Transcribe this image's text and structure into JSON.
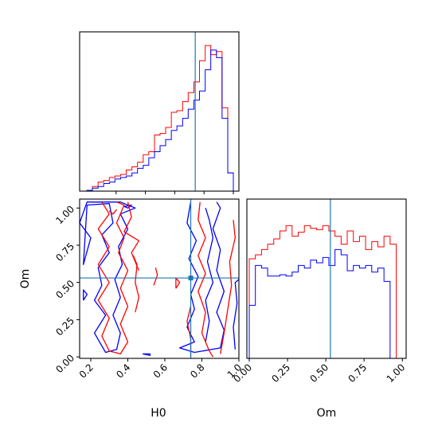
{
  "chart_data": [
    {
      "panel": "H0 marginal",
      "type": "histogram",
      "x_edges": [
        0.0,
        0.038,
        0.077,
        0.115,
        0.154,
        0.192,
        0.231,
        0.269,
        0.308,
        0.346,
        0.385,
        0.423,
        0.462,
        0.5,
        0.538,
        0.577,
        0.615,
        0.654,
        0.692,
        0.731,
        0.769,
        0.808,
        0.846,
        0.885,
        0.923,
        0.962,
        1.0
      ],
      "series": [
        {
          "color": "#ff0000",
          "values": [
            0.005,
            0.03,
            0.06,
            0.07,
            0.09,
            0.1,
            0.11,
            0.14,
            0.16,
            0.19,
            0.24,
            0.26,
            0.37,
            0.38,
            0.42,
            0.52,
            0.53,
            0.59,
            0.65,
            0.72,
            0.86,
            0.96,
            0.9,
            0.92,
            0.55,
            0.12
          ]
        },
        {
          "color": "#0000ff",
          "values": [
            0.005,
            0.02,
            0.03,
            0.05,
            0.06,
            0.08,
            0.09,
            0.1,
            0.12,
            0.15,
            0.17,
            0.22,
            0.26,
            0.3,
            0.34,
            0.4,
            0.43,
            0.48,
            0.54,
            0.6,
            0.66,
            0.8,
            0.93,
            0.88,
            0.48,
            0.12
          ]
        }
      ],
      "truth_line": 0.74,
      "ylim": [
        0,
        1.05
      ],
      "xlim": [
        0.0,
        1.0
      ]
    },
    {
      "panel": "Om marginal",
      "type": "histogram",
      "x_edges": [
        0.0,
        0.04,
        0.08,
        0.12,
        0.16,
        0.2,
        0.24,
        0.28,
        0.32,
        0.36,
        0.4,
        0.44,
        0.48,
        0.52,
        0.56,
        0.6,
        0.64,
        0.68,
        0.72,
        0.76,
        0.8,
        0.84,
        0.88,
        0.92,
        0.96,
        1.0
      ],
      "series": [
        {
          "color": "#ff0000",
          "values": [
            0.75,
            0.78,
            0.82,
            0.86,
            0.9,
            0.96,
            1.0,
            0.92,
            0.95,
            1.0,
            0.98,
            0.97,
            1.0,
            0.96,
            0.92,
            0.86,
            0.96,
            0.88,
            0.92,
            0.82,
            0.88,
            0.84,
            0.92,
            0.86,
            0.0
          ]
        },
        {
          "color": "#0000ff",
          "values": [
            0.4,
            0.7,
            0.68,
            0.62,
            0.62,
            0.63,
            0.62,
            0.65,
            0.7,
            0.68,
            0.74,
            0.72,
            0.76,
            0.7,
            0.82,
            0.78,
            0.66,
            0.7,
            0.68,
            0.7,
            0.65,
            0.68,
            0.58,
            0.0,
            0.0
          ]
        }
      ],
      "truth_line": 0.53,
      "ylim": [
        0,
        1.2
      ],
      "xlim": [
        0.0,
        1.03
      ],
      "xlabel": "Om",
      "xticks": [
        "0.00",
        "0.25",
        "0.50",
        "0.75",
        "1.00"
      ]
    },
    {
      "panel": "H0 vs Om 2D",
      "type": "contour",
      "xlabel": "H0",
      "ylabel": "Om",
      "xlim": [
        0.14,
        1.0
      ],
      "ylim": [
        -0.01,
        1.06
      ],
      "xticks": [
        "0.2",
        "0.4",
        "0.6",
        "0.8",
        "1.0"
      ],
      "yticks": [
        "0.00",
        "0.25",
        "0.50",
        "0.75",
        "1.00"
      ],
      "truth": {
        "H0": 0.74,
        "Om": 0.53
      },
      "series": [
        {
          "color": "#0000ff",
          "contours": [
            [
              [
                0.18,
                1.02
              ],
              [
                0.3,
                1.03
              ],
              [
                0.32,
                0.9
              ],
              [
                0.26,
                0.82
              ],
              [
                0.3,
                0.7
              ],
              [
                0.24,
                0.6
              ],
              [
                0.26,
                0.48
              ],
              [
                0.22,
                0.38
              ],
              [
                0.28,
                0.28
              ],
              [
                0.22,
                0.16
              ],
              [
                0.28,
                0.03
              ],
              [
                0.34,
                0.05
              ],
              [
                0.36,
                0.16
              ],
              [
                0.32,
                0.28
              ],
              [
                0.36,
                0.4
              ],
              [
                0.33,
                0.52
              ],
              [
                0.37,
                0.62
              ],
              [
                0.35,
                0.74
              ],
              [
                0.4,
                0.86
              ],
              [
                0.36,
                0.96
              ],
              [
                0.44,
                1.0
              ],
              [
                0.36,
                1.04
              ],
              [
                0.18,
                1.04
              ],
              [
                0.14,
                0.9
              ],
              [
                0.2,
                0.8
              ],
              [
                0.16,
                0.62
              ],
              [
                0.18,
                1.02
              ]
            ],
            [
              [
                0.74,
                1.04
              ],
              [
                0.72,
                0.9
              ],
              [
                0.77,
                0.78
              ],
              [
                0.73,
                0.66
              ],
              [
                0.78,
                0.54
              ],
              [
                0.74,
                0.42
              ],
              [
                0.76,
                0.32
              ],
              [
                0.72,
                0.2
              ],
              [
                0.76,
                0.1
              ],
              [
                0.68,
                0.06
              ],
              [
                0.76,
                0.03
              ],
              [
                0.9,
                0.06
              ],
              [
                0.92,
                0.18
              ],
              [
                0.88,
                0.3
              ],
              [
                0.92,
                0.44
              ],
              [
                0.88,
                0.58
              ],
              [
                0.9,
                0.72
              ],
              [
                0.86,
                0.86
              ],
              [
                0.9,
                1.0
              ],
              [
                0.88,
                1.04
              ]
            ],
            [
              [
                0.82,
                0.1
              ],
              [
                0.84,
                0.24
              ],
              [
                0.82,
                0.38
              ],
              [
                0.86,
                0.5
              ],
              [
                0.83,
                0.64
              ],
              [
                0.86,
                0.8
              ],
              [
                0.84,
                0.92
              ],
              [
                0.82,
                1.0
              ]
            ],
            [
              [
                0.98,
                0.05
              ],
              [
                0.97,
                0.2
              ],
              [
                0.99,
                0.36
              ],
              [
                0.98,
                0.5
              ],
              [
                1.0,
                0.52
              ]
            ],
            [
              [
                0.16,
                0.38
              ],
              [
                0.18,
                0.42
              ],
              [
                0.16,
                0.45
              ],
              [
                0.16,
                0.38
              ]
            ],
            [
              [
                0.48,
                0.02
              ],
              [
                0.52,
                0.02
              ],
              [
                0.52,
                0.01
              ],
              [
                0.48,
                0.02
              ]
            ],
            [
              [
                0.38,
                1.01
              ],
              [
                0.42,
                1.02
              ],
              [
                0.4,
                1.0
              ],
              [
                0.38,
                1.01
              ]
            ]
          ]
        },
        {
          "color": "#ff0000",
          "contours": [
            [
              [
                0.26,
                1.04
              ],
              [
                0.3,
                0.96
              ],
              [
                0.24,
                0.86
              ],
              [
                0.3,
                0.74
              ],
              [
                0.24,
                0.62
              ],
              [
                0.3,
                0.5
              ],
              [
                0.24,
                0.38
              ],
              [
                0.3,
                0.26
              ],
              [
                0.26,
                0.14
              ],
              [
                0.3,
                0.04
              ],
              [
                0.36,
                0.02
              ],
              [
                0.4,
                0.1
              ],
              [
                0.36,
                0.22
              ],
              [
                0.4,
                0.34
              ],
              [
                0.36,
                0.46
              ],
              [
                0.4,
                0.58
              ],
              [
                0.35,
                0.7
              ],
              [
                0.38,
                0.8
              ],
              [
                0.34,
                0.9
              ],
              [
                0.38,
                1.02
              ],
              [
                0.34,
                1.04
              ]
            ],
            [
              [
                0.4,
                1.04
              ],
              [
                0.42,
                0.94
              ],
              [
                0.38,
                0.84
              ],
              [
                0.46,
                0.78
              ],
              [
                0.42,
                0.7
              ],
              [
                0.46,
                0.58
              ]
            ],
            [
              [
                0.44,
                0.3
              ],
              [
                0.46,
                0.4
              ],
              [
                0.44,
                0.5
              ],
              [
                0.45,
                0.62
              ],
              [
                0.43,
                0.68
              ]
            ],
            [
              [
                0.79,
                1.04
              ],
              [
                0.78,
                0.92
              ],
              [
                0.82,
                0.8
              ],
              [
                0.78,
                0.68
              ],
              [
                0.82,
                0.56
              ],
              [
                0.78,
                0.44
              ],
              [
                0.82,
                0.3
              ],
              [
                0.8,
                0.16
              ],
              [
                0.84,
                0.04
              ],
              [
                0.86,
                0.0
              ]
            ],
            [
              [
                0.9,
                0.02
              ],
              [
                0.92,
                0.16
              ],
              [
                0.94,
                0.32
              ],
              [
                0.96,
                0.48
              ],
              [
                0.95,
                0.64
              ],
              [
                0.98,
                0.8
              ],
              [
                0.97,
                0.92
              ]
            ],
            [
              [
                0.74,
                0.0
              ],
              [
                0.74,
                0.12
              ],
              [
                0.72,
                0.24
              ],
              [
                0.74,
                0.34
              ]
            ],
            [
              [
                0.66,
                0.46
              ],
              [
                0.68,
                0.5
              ],
              [
                0.66,
                0.53
              ],
              [
                0.66,
                0.46
              ]
            ],
            [
              [
                0.54,
                0.48
              ],
              [
                0.56,
                0.55
              ],
              [
                0.55,
                0.6
              ]
            ],
            [
              [
                0.3,
                0.98
              ],
              [
                0.32,
                0.96
              ],
              [
                0.34,
                0.99
              ]
            ]
          ]
        }
      ]
    }
  ]
}
